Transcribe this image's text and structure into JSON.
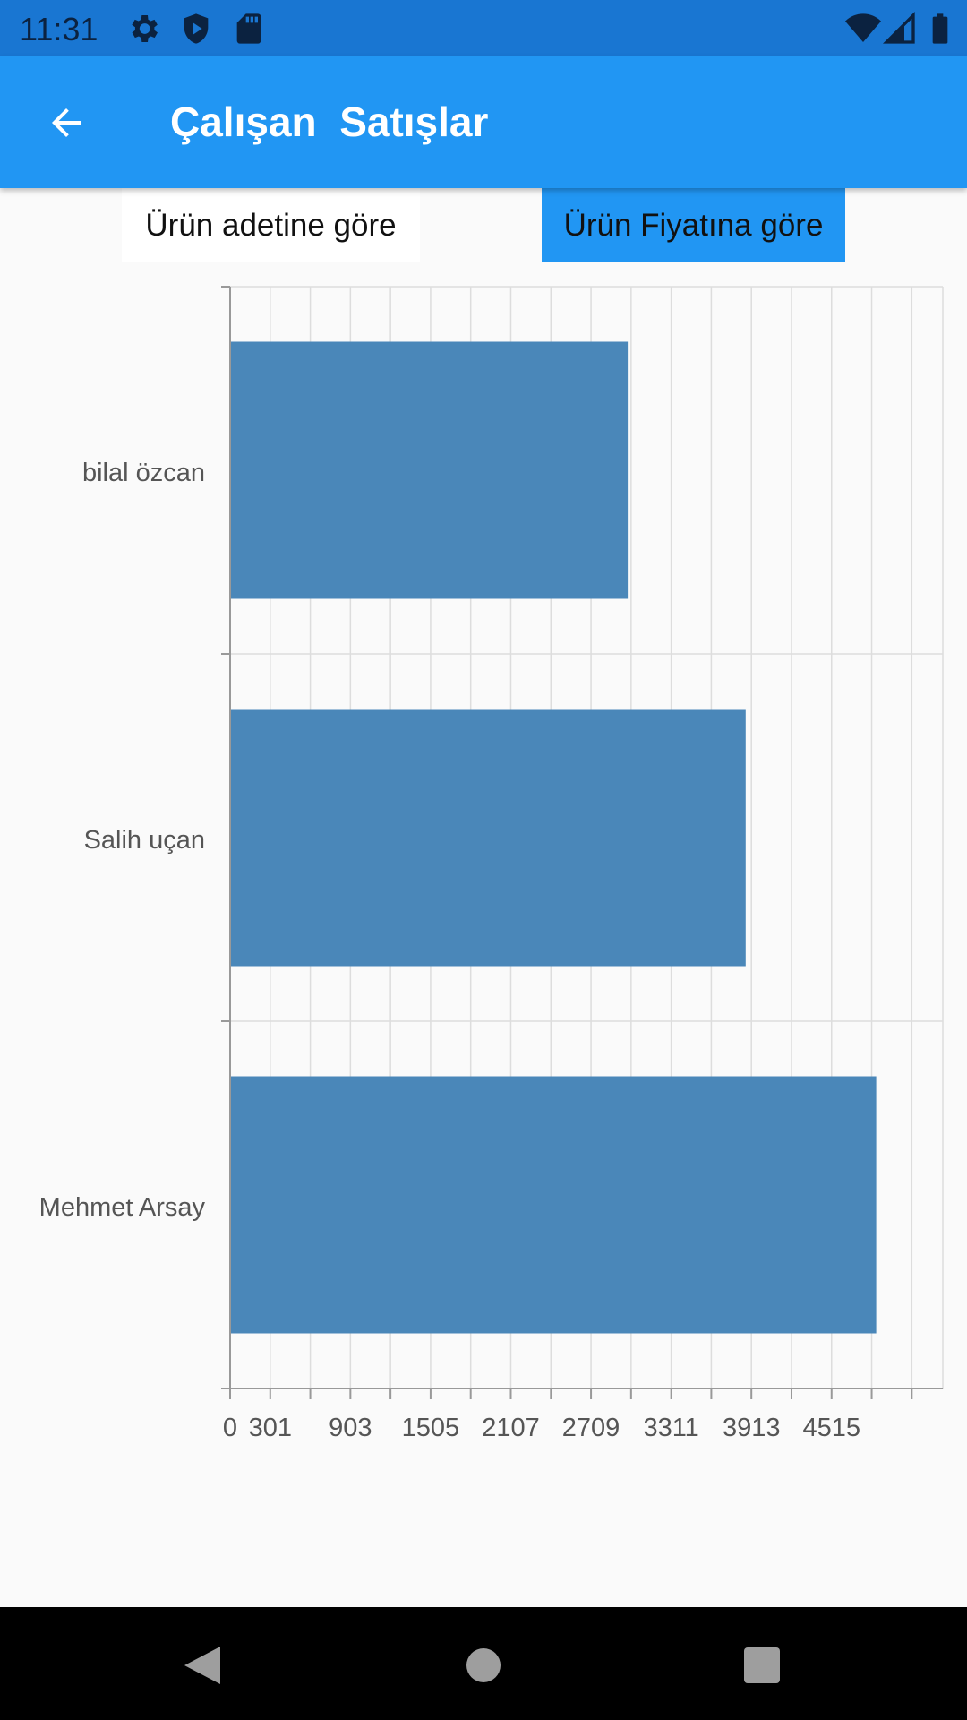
{
  "status_bar": {
    "time": "11:31",
    "icons": [
      "settings-icon",
      "shield-icon",
      "sd-card-icon",
      "wifi-icon",
      "signal-icon",
      "battery-icon"
    ]
  },
  "app_bar": {
    "title": "Çalışan  Satışlar",
    "back_icon": "arrow-back-icon",
    "color": "#2196F3"
  },
  "tabs": [
    {
      "label": "Ürün adetine göre",
      "selected": false
    },
    {
      "label": "Ürün Fiyatına göre",
      "selected": true
    }
  ],
  "chart_data": {
    "type": "bar",
    "orientation": "horizontal",
    "categories": [
      "bilal özcan",
      "Salih uçan",
      "Mehmet Arsay"
    ],
    "values": [
      2985,
      3870,
      4850
    ],
    "x_ticks": [
      "0",
      "301",
      "903",
      "1505",
      "2107",
      "2709",
      "3311",
      "3913",
      "4515"
    ],
    "xlim": [
      0,
      5350
    ],
    "bar_color": "#4A87B9",
    "grid": true
  },
  "nav_bar": {
    "icons": [
      "back-triangle-icon",
      "home-circle-icon",
      "recents-square-icon"
    ]
  }
}
